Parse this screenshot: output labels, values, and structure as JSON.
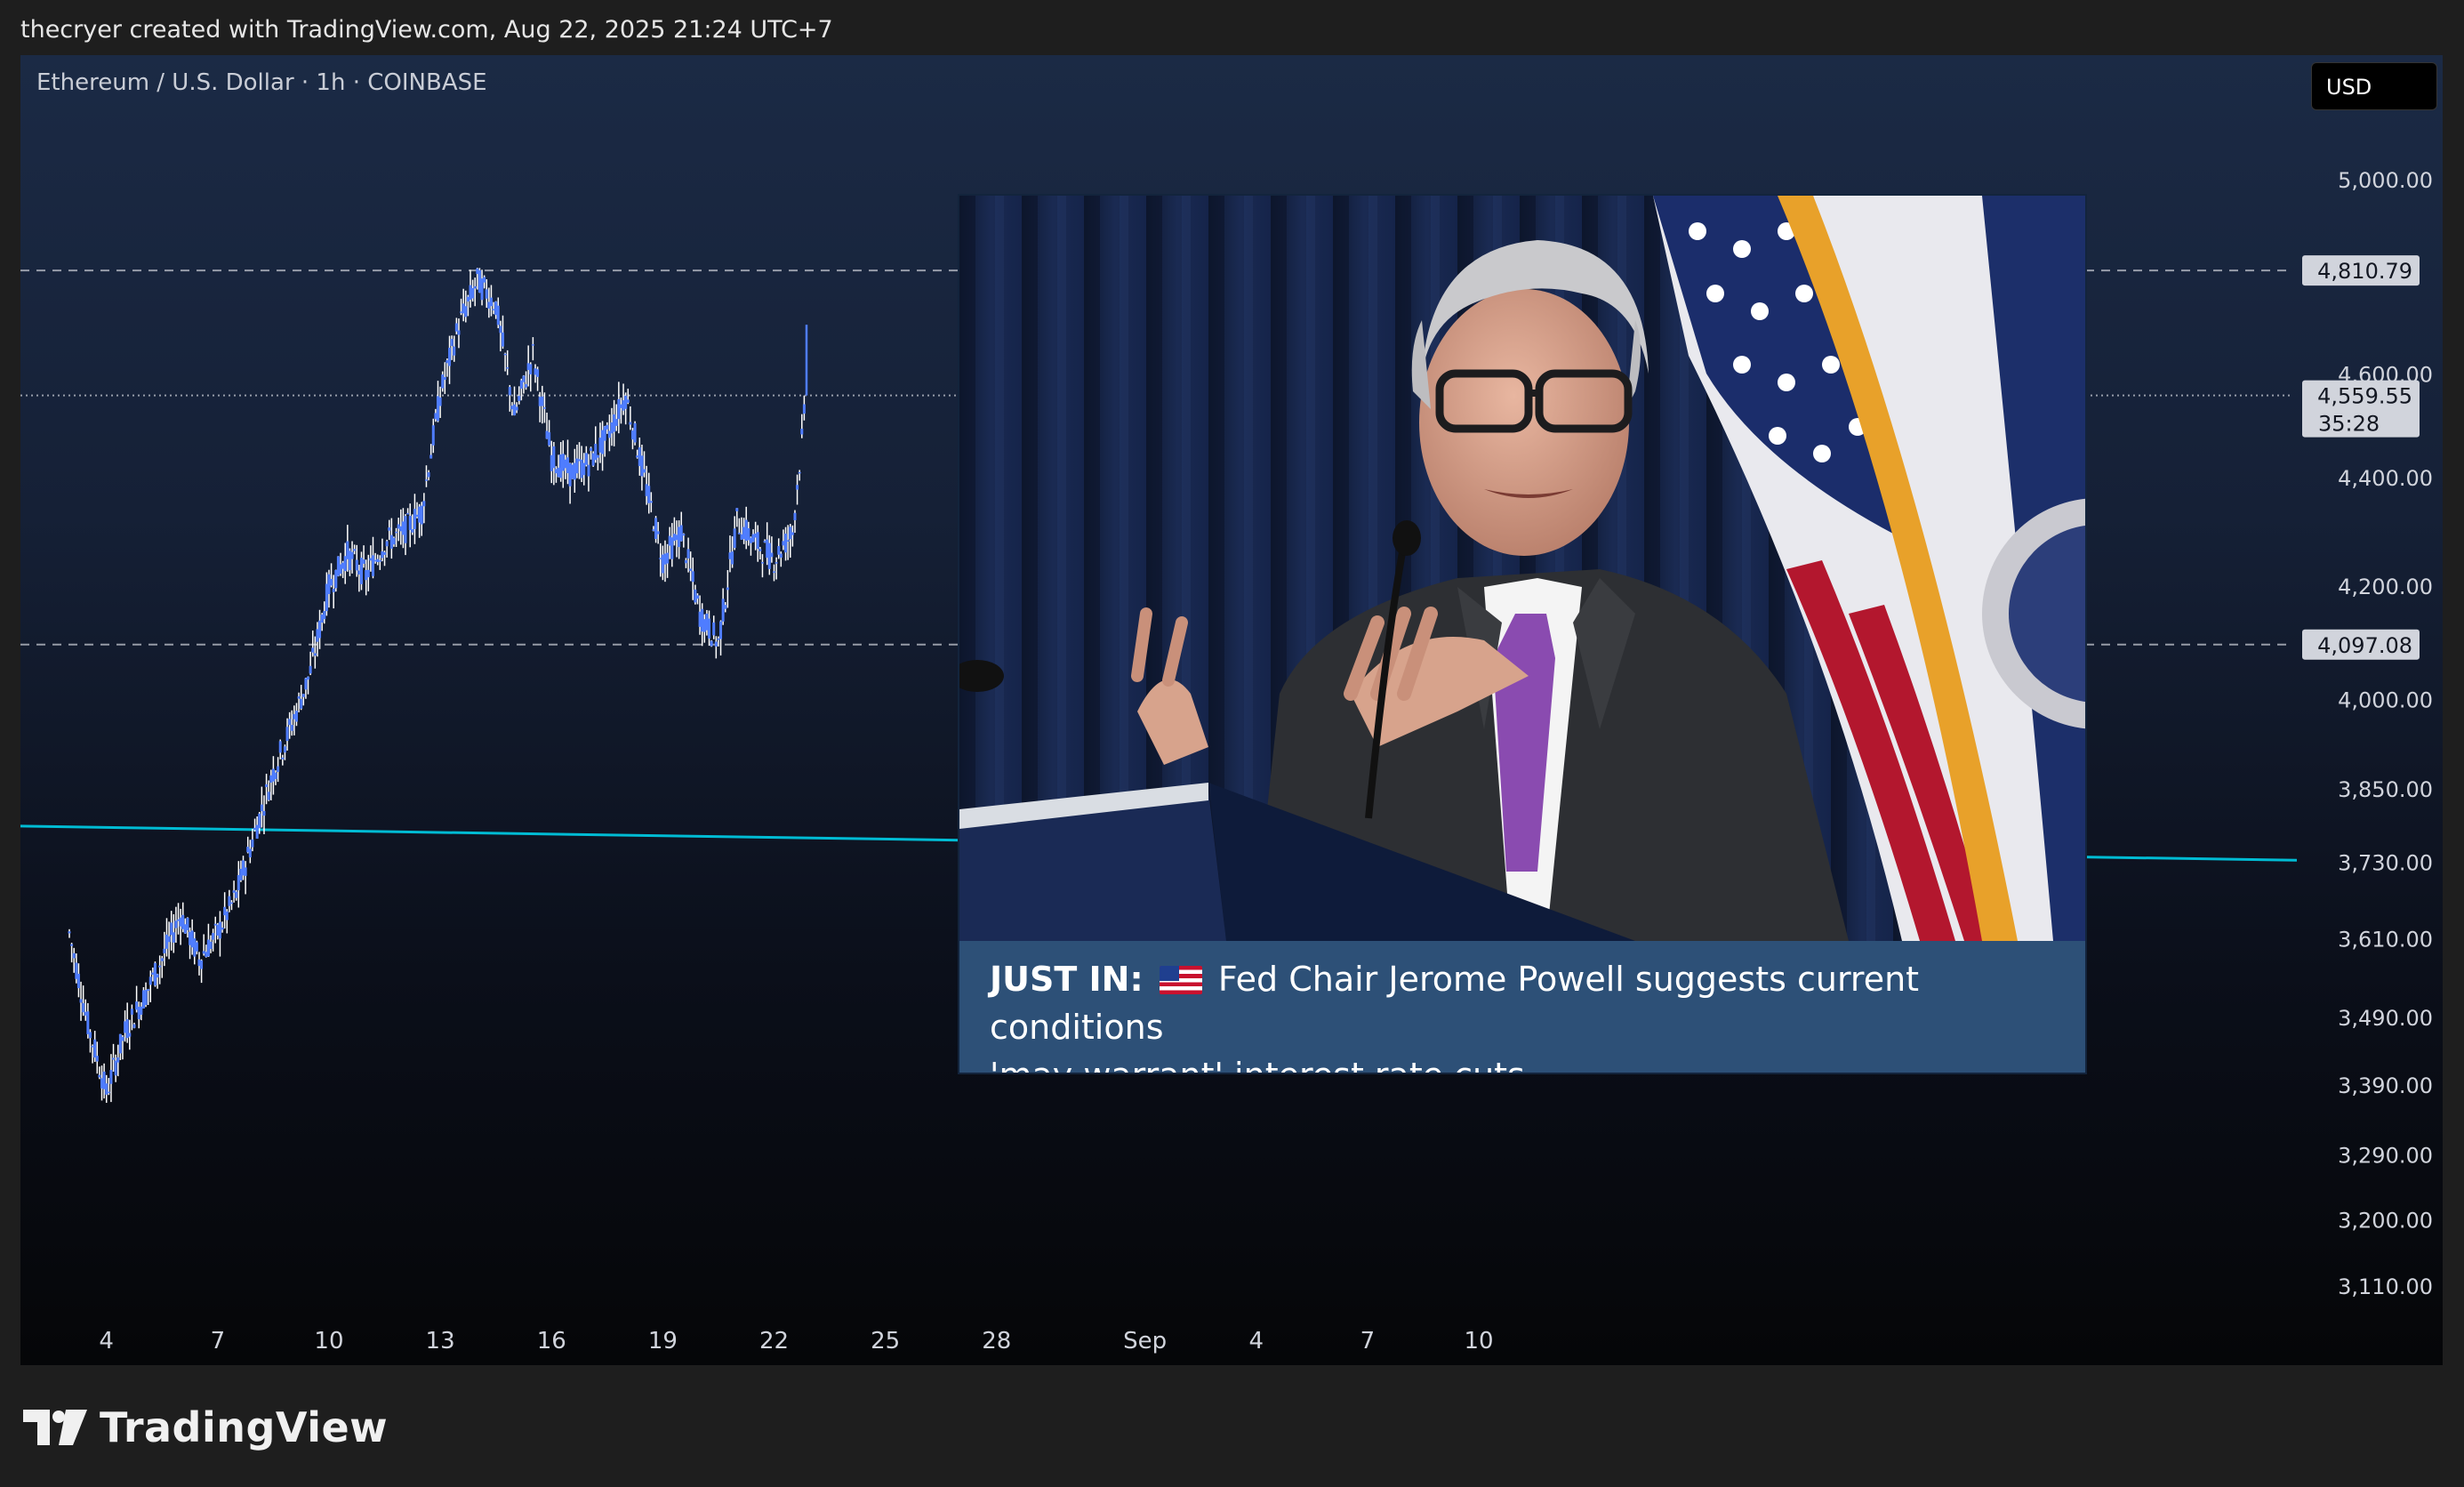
{
  "header": {
    "attribution": "thecryer created with TradingView.com, Aug 22, 2025 21:24 UTC+7"
  },
  "chart": {
    "symbol_line": "Ethereum / U.S. Dollar · 1h · COINBASE",
    "currency": "USD"
  },
  "news": {
    "prefix": "JUST IN:",
    "text_line1": "Fed Chair Jerome Powell suggests current conditions",
    "text_line2": "'may warrant' interest rate cuts.",
    "flag_icon": "us-flag-icon"
  },
  "footer": {
    "brand": "TradingView"
  },
  "colors": {
    "candle": "#4f7dff",
    "wick": "#ffffff",
    "trendline": "#00bcd4",
    "price_tag_bg": "#d1d4dc"
  },
  "chart_data": {
    "type": "line",
    "series_style": "candlestick-like hourly price",
    "y_scale": "log",
    "y_ticks": [
      5000,
      4600,
      4400,
      4200,
      4000,
      3850,
      3730,
      3610,
      3490,
      3390,
      3290,
      3200,
      3110
    ],
    "y_tick_labels": [
      "5,000.00",
      "4,600.00",
      "4,400.00",
      "4,200.00",
      "4,000.00",
      "3,850.00",
      "3,730.00",
      "3,610.00",
      "3,490.00",
      "3,390.00",
      "3,290.00",
      "3,200.00",
      "3,110.00"
    ],
    "x_ticks": [
      {
        "label": "4",
        "x": "2025-08-04"
      },
      {
        "label": "7",
        "x": "2025-08-07"
      },
      {
        "label": "10",
        "x": "2025-08-10"
      },
      {
        "label": "13",
        "x": "2025-08-13"
      },
      {
        "label": "16",
        "x": "2025-08-16"
      },
      {
        "label": "19",
        "x": "2025-08-19"
      },
      {
        "label": "22",
        "x": "2025-08-22"
      },
      {
        "label": "25",
        "x": "2025-08-25"
      },
      {
        "label": "28",
        "x": "2025-08-28"
      },
      {
        "label": "Sep",
        "x": "2025-09-01"
      },
      {
        "label": "4",
        "x": "2025-09-04"
      },
      {
        "label": "7",
        "x": "2025-09-07"
      },
      {
        "label": "10",
        "x": "2025-09-10"
      }
    ],
    "x_range": [
      "2025-08-03",
      "2025-09-10"
    ],
    "price_points": [
      {
        "x": "2025-08-03T00:00",
        "y": 3620
      },
      {
        "x": "2025-08-03T12:00",
        "y": 3480
      },
      {
        "x": "2025-08-04T00:00",
        "y": 3380
      },
      {
        "x": "2025-08-04T12:00",
        "y": 3470
      },
      {
        "x": "2025-08-05T00:00",
        "y": 3520
      },
      {
        "x": "2025-08-05T12:00",
        "y": 3580
      },
      {
        "x": "2025-08-06T00:00",
        "y": 3650
      },
      {
        "x": "2025-08-06T12:00",
        "y": 3580
      },
      {
        "x": "2025-08-07T00:00",
        "y": 3620
      },
      {
        "x": "2025-08-07T12:00",
        "y": 3680
      },
      {
        "x": "2025-08-08T00:00",
        "y": 3780
      },
      {
        "x": "2025-08-08T12:00",
        "y": 3880
      },
      {
        "x": "2025-08-09T00:00",
        "y": 3960
      },
      {
        "x": "2025-08-09T12:00",
        "y": 4050
      },
      {
        "x": "2025-08-10T00:00",
        "y": 4200
      },
      {
        "x": "2025-08-10T12:00",
        "y": 4260
      },
      {
        "x": "2025-08-11T00:00",
        "y": 4220
      },
      {
        "x": "2025-08-11T12:00",
        "y": 4280
      },
      {
        "x": "2025-08-12T00:00",
        "y": 4300
      },
      {
        "x": "2025-08-12T12:00",
        "y": 4340
      },
      {
        "x": "2025-08-13T00:00",
        "y": 4560
      },
      {
        "x": "2025-08-13T12:00",
        "y": 4700
      },
      {
        "x": "2025-08-14T00:00",
        "y": 4790
      },
      {
        "x": "2025-08-14T12:00",
        "y": 4740
      },
      {
        "x": "2025-08-15T00:00",
        "y": 4520
      },
      {
        "x": "2025-08-15T12:00",
        "y": 4640
      },
      {
        "x": "2025-08-16T00:00",
        "y": 4440
      },
      {
        "x": "2025-08-16T12:00",
        "y": 4410
      },
      {
        "x": "2025-08-17T00:00",
        "y": 4430
      },
      {
        "x": "2025-08-17T12:00",
        "y": 4480
      },
      {
        "x": "2025-08-18T00:00",
        "y": 4560
      },
      {
        "x": "2025-08-18T12:00",
        "y": 4400
      },
      {
        "x": "2025-08-19T00:00",
        "y": 4250
      },
      {
        "x": "2025-08-19T12:00",
        "y": 4300
      },
      {
        "x": "2025-08-20T00:00",
        "y": 4150
      },
      {
        "x": "2025-08-20T12:00",
        "y": 4100
      },
      {
        "x": "2025-08-21T00:00",
        "y": 4320
      },
      {
        "x": "2025-08-21T12:00",
        "y": 4280
      },
      {
        "x": "2025-08-22T00:00",
        "y": 4250
      },
      {
        "x": "2025-08-22T12:00",
        "y": 4300
      },
      {
        "x": "2025-08-22T21:00",
        "y": 4559.55
      }
    ],
    "spike_high": 4700,
    "levels": [
      {
        "value": 4810.79,
        "label": "4,810.79",
        "style": "dashed"
      },
      {
        "value": 4559.55,
        "label": "4,559.55",
        "countdown": "35:28",
        "style": "dotted"
      },
      {
        "value": 4097.08,
        "label": "4,097.08",
        "style": "dashed"
      }
    ],
    "trendline": {
      "start": {
        "x": "2025-08-03",
        "y": 3790
      },
      "end": {
        "x": "2025-09-10",
        "y": 3735
      }
    }
  }
}
